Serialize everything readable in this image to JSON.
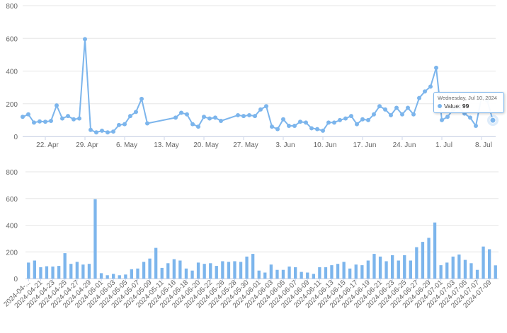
{
  "chart_data": [
    {
      "type": "line",
      "ylim": [
        0,
        800
      ],
      "yticks": [
        "0",
        "200",
        "400",
        "600",
        "800"
      ],
      "xtick_labels": [
        "22. Apr",
        "29. Apr",
        "6. May",
        "13. May",
        "20. May",
        "27. May",
        "3. Jun",
        "10. Jun",
        "17. Jun",
        "24. Jun",
        "1. Jul",
        "8. Jul"
      ],
      "grid": true,
      "color": "#7cb5ec",
      "series": [
        {
          "values": [
            [
              "2024-04-18",
              120
            ],
            [
              "2024-04-19",
              135
            ],
            [
              "2024-04-20",
              85
            ],
            [
              "2024-04-21",
              92
            ],
            [
              "2024-04-22",
              90
            ],
            [
              "2024-04-23",
              95
            ],
            [
              "2024-04-24",
              190
            ],
            [
              "2024-04-25",
              110
            ],
            [
              "2024-04-26",
              125
            ],
            [
              "2024-04-27",
              105
            ],
            [
              "2024-04-28",
              110
            ],
            [
              "2024-04-29",
              595
            ],
            [
              "2024-04-30",
              40
            ],
            [
              "2024-05-01",
              25
            ],
            [
              "2024-05-02",
              35
            ],
            [
              "2024-05-03",
              25
            ],
            [
              "2024-05-04",
              30
            ],
            [
              "2024-05-05",
              70
            ],
            [
              "2024-05-06",
              75
            ],
            [
              "2024-05-07",
              125
            ],
            [
              "2024-05-08",
              150
            ],
            [
              "2024-05-09",
              230
            ],
            [
              "2024-05-10",
              80
            ],
            [
              "2024-05-15",
              115
            ],
            [
              "2024-05-16",
              145
            ],
            [
              "2024-05-17",
              135
            ],
            [
              "2024-05-18",
              75
            ],
            [
              "2024-05-19",
              60
            ],
            [
              "2024-05-20",
              120
            ],
            [
              "2024-05-21",
              110
            ],
            [
              "2024-05-22",
              115
            ],
            [
              "2024-05-23",
              95
            ],
            [
              "2024-05-26",
              130
            ],
            [
              "2024-05-27",
              125
            ],
            [
              "2024-05-28",
              130
            ],
            [
              "2024-05-29",
              125
            ],
            [
              "2024-05-30",
              165
            ],
            [
              "2024-05-31",
              185
            ],
            [
              "2024-06-01",
              60
            ],
            [
              "2024-06-02",
              45
            ],
            [
              "2024-06-03",
              105
            ],
            [
              "2024-06-04",
              65
            ],
            [
              "2024-06-05",
              65
            ],
            [
              "2024-06-06",
              90
            ],
            [
              "2024-06-07",
              85
            ],
            [
              "2024-06-08",
              50
            ],
            [
              "2024-06-09",
              45
            ],
            [
              "2024-06-10",
              35
            ],
            [
              "2024-06-11",
              85
            ],
            [
              "2024-06-12",
              85
            ],
            [
              "2024-06-13",
              100
            ],
            [
              "2024-06-14",
              110
            ],
            [
              "2024-06-15",
              125
            ],
            [
              "2024-06-16",
              75
            ],
            [
              "2024-06-17",
              105
            ],
            [
              "2024-06-18",
              100
            ],
            [
              "2024-06-19",
              135
            ],
            [
              "2024-06-20",
              185
            ],
            [
              "2024-06-21",
              165
            ],
            [
              "2024-06-22",
              130
            ],
            [
              "2024-06-23",
              175
            ],
            [
              "2024-06-24",
              135
            ],
            [
              "2024-06-25",
              175
            ],
            [
              "2024-06-26",
              135
            ],
            [
              "2024-06-27",
              235
            ],
            [
              "2024-06-28",
              275
            ],
            [
              "2024-06-29",
              305
            ],
            [
              "2024-06-30",
              420
            ],
            [
              "2024-07-01",
              100
            ],
            [
              "2024-07-02",
              120
            ],
            [
              "2024-07-03",
              165
            ],
            [
              "2024-07-04",
              180
            ],
            [
              "2024-07-05",
              140
            ],
            [
              "2024-07-06",
              115
            ],
            [
              "2024-07-07",
              65
            ],
            [
              "2024-07-08",
              240
            ],
            [
              "2024-07-09",
              220
            ],
            [
              "2024-07-10",
              99
            ]
          ]
        }
      ],
      "tooltip": {
        "date": "Wednesday, Jul 10, 2024",
        "label": "Value:",
        "value": "99"
      }
    },
    {
      "type": "bar",
      "ylim": [
        0,
        800
      ],
      "yticks": [
        "0",
        "200",
        "400",
        "600",
        "800"
      ],
      "xtick_labels": [
        "2024-04-...",
        "2024-04-21",
        "2024-04-23",
        "2024-04-25",
        "2024-04-27",
        "2024-04-29",
        "2024-05-01",
        "2024-05-03",
        "2024-05-05",
        "2024-05-07",
        "2024-05-09",
        "2024-05-11",
        "2024-05-16",
        "2024-05-18",
        "2024-05-20",
        "2024-05-22",
        "2024-05-26",
        "2024-05-28",
        "2024-05-30",
        "2024-06-01",
        "2024-06-03",
        "2024-06-05",
        "2024-06-07",
        "2024-06-09",
        "2024-06-11",
        "2024-06-13",
        "2024-06-15",
        "2024-06-17",
        "2024-06-19",
        "2024-06-21",
        "2024-06-23",
        "2024-06-25",
        "2024-06-27",
        "2024-06-29",
        "2024-07-01",
        "2024-07-03",
        "2024-07-05",
        "2024-07-07",
        "2024-07-09"
      ],
      "grid": true,
      "color": "#7cb5ec",
      "values": [
        120,
        135,
        85,
        92,
        90,
        95,
        190,
        110,
        125,
        105,
        110,
        595,
        40,
        25,
        35,
        25,
        30,
        70,
        75,
        125,
        150,
        230,
        80,
        115,
        145,
        135,
        75,
        60,
        120,
        110,
        115,
        95,
        130,
        125,
        130,
        125,
        165,
        185,
        60,
        45,
        105,
        65,
        65,
        90,
        85,
        50,
        45,
        35,
        85,
        85,
        100,
        110,
        125,
        75,
        105,
        100,
        135,
        185,
        165,
        130,
        175,
        135,
        175,
        135,
        235,
        275,
        305,
        420,
        100,
        120,
        165,
        180,
        140,
        115,
        65,
        240,
        220,
        99
      ]
    }
  ]
}
